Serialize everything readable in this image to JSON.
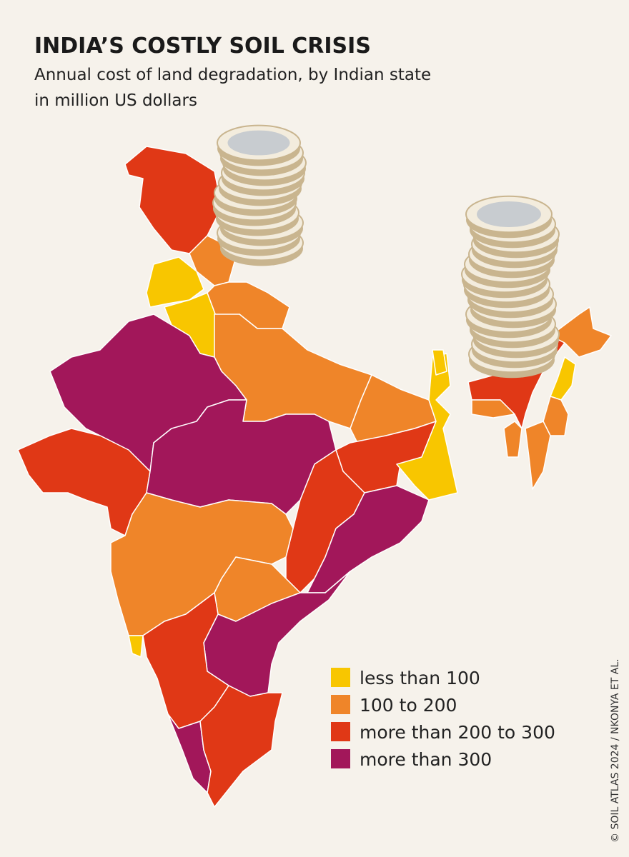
{
  "title": "INDIA’S COSTLY SOIL CRISIS",
  "subtitle": [
    "Annual cost of land degradation, by Indian state",
    "in million US dollars"
  ],
  "legend": [
    {
      "label": "less than 100",
      "color": "#f8c600"
    },
    {
      "label": "100 to 200",
      "color": "#ef8529"
    },
    {
      "label": "more than 200 to 300",
      "color": "#e03816"
    },
    {
      "label": "more than 300",
      "color": "#a2175a"
    }
  ],
  "credit": "© SOIL ATLAS 2024 / NKONYA ET AL."
}
